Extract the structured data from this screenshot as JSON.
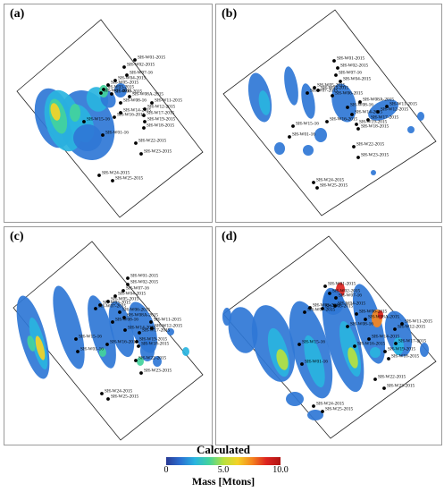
{
  "panels": [
    {
      "id": "a",
      "label": "(a)",
      "wells": [
        {
          "name": "SH-W01-2015"
        },
        {
          "name": "SH-W02-2015"
        },
        {
          "name": "SH-W07-16"
        },
        {
          "name": "SH-W04-2015"
        },
        {
          "name": "SH-W05-2015"
        },
        {
          "name": "SH-W03-2015"
        },
        {
          "name": "SH-W07-2015"
        },
        {
          "name": "SH-W06-2015"
        },
        {
          "name": "SH-W08A-2015"
        },
        {
          "name": "SH-W08-16"
        },
        {
          "name": "SH-W11-2015"
        },
        {
          "name": "SH-W12-2015"
        },
        {
          "name": "SH-W14-2015"
        },
        {
          "name": "SH-W17-2015"
        },
        {
          "name": "SH-W15-16"
        },
        {
          "name": "SH-W16-2015"
        },
        {
          "name": "SH-W19-2015"
        },
        {
          "name": "SH-W18-2015"
        },
        {
          "name": "SH-W01-16"
        },
        {
          "name": "SH-W22-2015"
        },
        {
          "name": "SH-W23-2015"
        },
        {
          "name": "SH-W24-2015"
        },
        {
          "name": "SH-W25-2015"
        }
      ]
    },
    {
      "id": "b",
      "label": "(b)",
      "wells": [
        {
          "name": "SH-W01-2015"
        },
        {
          "name": "SH-W02-2015"
        },
        {
          "name": "SH-W07-16"
        },
        {
          "name": "SH-W04-2015"
        },
        {
          "name": "SH-W05-2015"
        },
        {
          "name": "SH-W03-2015"
        },
        {
          "name": "SH-W07-2015"
        },
        {
          "name": "SH-W06-2015"
        },
        {
          "name": "SH-W08A-2015"
        },
        {
          "name": "SH-W08-16"
        },
        {
          "name": "SH-W11-2015"
        },
        {
          "name": "SH-W12-2015"
        },
        {
          "name": "SH-W14-2015"
        },
        {
          "name": "SH-W17-2015"
        },
        {
          "name": "SH-W15-16"
        },
        {
          "name": "SH-W16-2015"
        },
        {
          "name": "SH-W19-2015"
        },
        {
          "name": "SH-W18-2015"
        },
        {
          "name": "SH-W01-16"
        },
        {
          "name": "SH-W22-2015"
        },
        {
          "name": "SH-W23-2015"
        },
        {
          "name": "SH-W24-2015"
        },
        {
          "name": "SH-W25-2015"
        }
      ]
    },
    {
      "id": "c",
      "label": "(c)",
      "wells": [
        {
          "name": "SH-W01-2015"
        },
        {
          "name": "SH-W02-2015"
        },
        {
          "name": "SH-W07-16"
        },
        {
          "name": "SH-W04-2015"
        },
        {
          "name": "SH-W05-2015"
        },
        {
          "name": "SH-W03-2015"
        },
        {
          "name": "SH-W07-2015"
        },
        {
          "name": "SH-W06-2015"
        },
        {
          "name": "SH-W08A-2015"
        },
        {
          "name": "SH-W08-16"
        },
        {
          "name": "SH-W11-2015"
        },
        {
          "name": "SH-W12-2015"
        },
        {
          "name": "SH-W14-2015"
        },
        {
          "name": "SH-W17-2015"
        },
        {
          "name": "SH-W15-16"
        },
        {
          "name": "SH-W16-2015"
        },
        {
          "name": "SH-W19-2015"
        },
        {
          "name": "SH-W18-2015"
        },
        {
          "name": "SH-W01-16"
        },
        {
          "name": "SH-W22-2015"
        },
        {
          "name": "SH-W23-2015"
        },
        {
          "name": "SH-W24-2015"
        },
        {
          "name": "SH-W25-2015"
        }
      ]
    },
    {
      "id": "d",
      "label": "(d)",
      "wells": [
        {
          "name": "SH-W01-2015"
        },
        {
          "name": "SH-W02-2015"
        },
        {
          "name": "SH-W07-16"
        },
        {
          "name": "SH-W04-2015"
        },
        {
          "name": "SH-W05-2015"
        },
        {
          "name": "SH-W03-2015"
        },
        {
          "name": "SH-W07-2015"
        },
        {
          "name": "SH-W06-2015"
        },
        {
          "name": "SH-W08A-2015"
        },
        {
          "name": "SH-W08-16"
        },
        {
          "name": "SH-W11-2015"
        },
        {
          "name": "SH-W12-2015"
        },
        {
          "name": "SH-W14-2015"
        },
        {
          "name": "SH-W17-2015"
        },
        {
          "name": "SH-W15-16"
        },
        {
          "name": "SH-W16-2015"
        },
        {
          "name": "SH-W19-2015"
        },
        {
          "name": "SH-W18-2015"
        },
        {
          "name": "SH-W01-16"
        },
        {
          "name": "SH-W22-2015"
        },
        {
          "name": "SH-W23-2015"
        },
        {
          "name": "SH-W24-2015"
        },
        {
          "name": "SH-W25-2015"
        }
      ]
    }
  ],
  "colorbar": {
    "title": "Calculated",
    "axis_label": "Mass [Mtons]",
    "ticks": [
      "0",
      "5.0",
      "10.0"
    ],
    "min": 0,
    "max": 10,
    "colors": [
      "#2a3a95",
      "#2b6fd1",
      "#29b4e0",
      "#43d39c",
      "#b6e13f",
      "#f4d226",
      "#f5861f",
      "#dd2420",
      "#b01414"
    ]
  }
}
